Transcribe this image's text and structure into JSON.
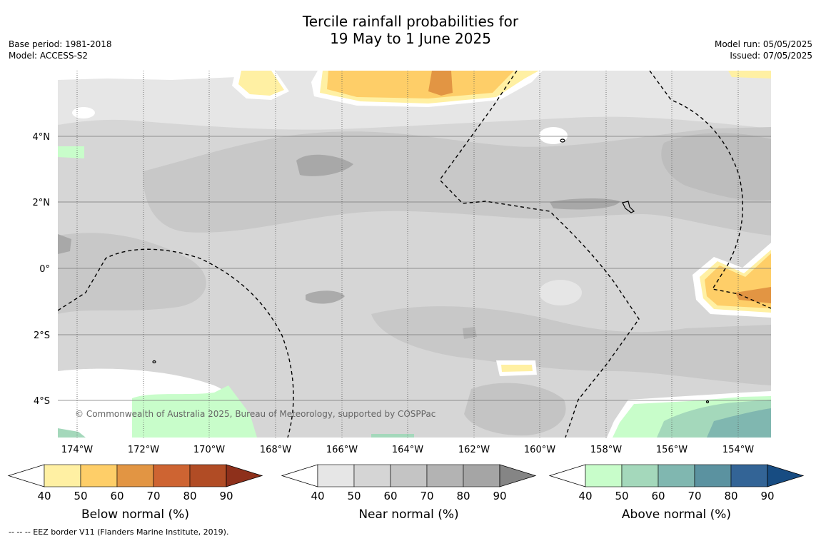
{
  "title": {
    "line1": "Tercile rainfall probabilities for",
    "line2": "19 May to 1 June 2025"
  },
  "meta_left": {
    "base_period": "Base period: 1981-2018",
    "model": "Model: ACCESS-S2"
  },
  "meta_right": {
    "model_run": "Model run: 05/05/2025",
    "issued": "Issued: 07/05/2025"
  },
  "map": {
    "lat_labels": [
      "4°N",
      "2°N",
      "0°",
      "2°S",
      "4°S"
    ],
    "lon_labels": [
      "174°W",
      "172°W",
      "170°W",
      "168°W",
      "166°W",
      "164°W",
      "162°W",
      "160°W",
      "158°W",
      "156°W",
      "154°W"
    ],
    "copyright": "© Commonwealth of Australia 2025, Bureau of Meteorology, supported by COSPPac"
  },
  "colorbars": [
    {
      "label": "Below normal (%)",
      "ticks": [
        "40",
        "50",
        "60",
        "70",
        "80",
        "90"
      ],
      "colors": [
        "#fff0a3",
        "#fece68",
        "#e29543",
        "#ce6432",
        "#b14c25",
        "#8e301b"
      ]
    },
    {
      "label": "Near normal (%)",
      "ticks": [
        "40",
        "50",
        "60",
        "70",
        "80",
        "90"
      ],
      "colors": [
        "#e6e6e6",
        "#d5d5d5",
        "#c4c4c4",
        "#b3b3b3",
        "#a5a5a5",
        "#858585"
      ]
    },
    {
      "label": "Above normal (%)",
      "ticks": [
        "40",
        "50",
        "60",
        "70",
        "80",
        "90"
      ],
      "colors": [
        "#c8fdca",
        "#a4d8bb",
        "#80b7b0",
        "#5b92a0",
        "#336496",
        "#174c82"
      ]
    }
  ],
  "footnote": "--  --  -- EEZ border V11 (Flanders Marine Institute, 2019)."
}
